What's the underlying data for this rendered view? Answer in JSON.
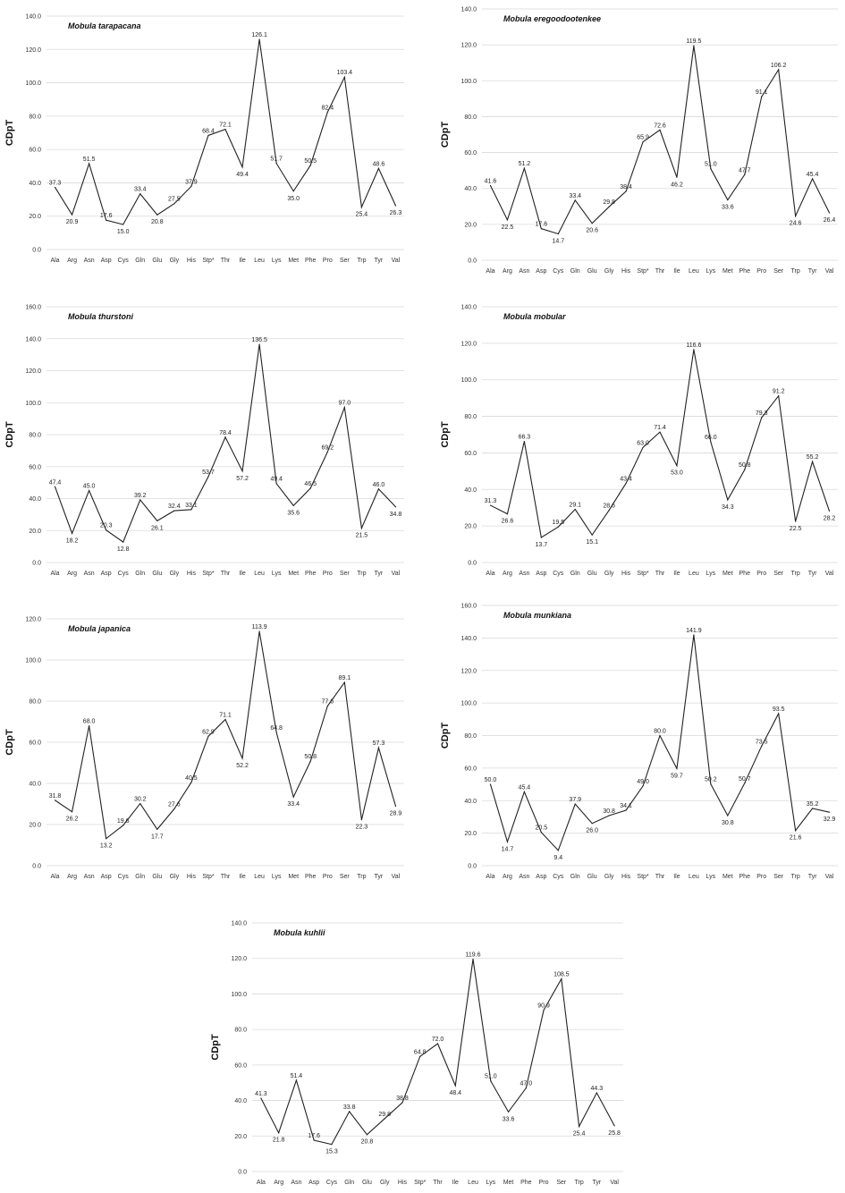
{
  "chart_data": [
    {
      "type": "line",
      "title": "Mobula tarapacana",
      "ylabel": "CDpT",
      "ylim": [
        0,
        140
      ],
      "yticks": [
        "0.0",
        "20.0",
        "40.0",
        "60.0",
        "80.0",
        "100.0",
        "120.0",
        "140.0"
      ],
      "categories": [
        "Ala",
        "Arg",
        "Asn",
        "Asp",
        "Cys",
        "Gln",
        "Glu",
        "Gly",
        "His",
        "Stp*",
        "Thr",
        "Ile",
        "Leu",
        "Lys",
        "Met",
        "Phe",
        "Pro",
        "Ser",
        "Trp",
        "Tyr",
        "Val"
      ],
      "values": [
        37.3,
        20.9,
        51.5,
        17.6,
        15.0,
        33.4,
        20.8,
        27.5,
        37.9,
        68.4,
        72.1,
        49.4,
        126.1,
        51.7,
        35.0,
        50.5,
        82.4,
        103.4,
        25.4,
        48.6,
        26.3
      ],
      "labels": [
        "37.3",
        "20.9",
        "51.5",
        "17.6",
        "15.0",
        "33.4",
        "20.8",
        "27.5",
        "37.9",
        "68.4",
        "72.1",
        "49.4",
        "126.1",
        "51.7",
        "35.0",
        "50.5",
        "82.4",
        "103.4",
        "25.4",
        "48.6",
        "26.3"
      ],
      "grid": true
    },
    {
      "type": "line",
      "title": "Mobula eregoodootenkee",
      "ylabel": "CDpT",
      "ylim": [
        0,
        140
      ],
      "yticks": [
        "0.0",
        "20.0",
        "40.0",
        "60.0",
        "80.0",
        "100.0",
        "120.0",
        "140.0"
      ],
      "categories": [
        "Ala",
        "Arg",
        "Asn",
        "Asp",
        "Cys",
        "Gln",
        "Glu",
        "Gly",
        "His",
        "Stp*",
        "Thr",
        "Ile",
        "Leu",
        "Lys",
        "Met",
        "Phe",
        "Pro",
        "Ser",
        "Trp",
        "Tyr",
        "Val"
      ],
      "values": [
        41.6,
        22.5,
        51.2,
        17.6,
        14.7,
        33.4,
        20.6,
        29.8,
        38.4,
        65.9,
        72.6,
        46.2,
        119.5,
        51.0,
        33.6,
        47.7,
        91.1,
        106.2,
        24.6,
        45.4,
        26.4
      ],
      "labels": [
        "41.6",
        "22.5",
        "51.2",
        "17.6",
        "14.7",
        "33.4",
        "20.6",
        "29.8",
        "38.4",
        "65.9",
        "72.6",
        "46.2",
        "119.5",
        "51.0",
        "33.6",
        "47.7",
        "91.1",
        "106.2",
        "24.6",
        "45.4",
        "26.4"
      ],
      "grid": true
    },
    {
      "type": "line",
      "title": "Mobula thurstoni",
      "ylabel": "CDpT",
      "ylim": [
        0,
        160
      ],
      "yticks": [
        "0.0",
        "20.0",
        "40.0",
        "60.0",
        "80.0",
        "100.0",
        "120.0",
        "140.0",
        "160.0"
      ],
      "categories": [
        "Ala",
        "Arg",
        "Asn",
        "Asp",
        "Cys",
        "Gln",
        "Glu",
        "Gly",
        "His",
        "Stp*",
        "Thr",
        "Ile",
        "Leu",
        "Lys",
        "Met",
        "Phe",
        "Pro",
        "Ser",
        "Trp",
        "Tyr",
        "Val"
      ],
      "values": [
        47.4,
        18.2,
        45.0,
        20.3,
        12.8,
        39.2,
        26.1,
        32.4,
        33.1,
        53.7,
        78.4,
        57.2,
        136.5,
        49.4,
        35.6,
        46.5,
        69.2,
        97.0,
        21.5,
        46.0,
        34.8
      ],
      "labels": [
        "47.4",
        "18.2",
        "45.0",
        "20.3",
        "12.8",
        "39.2",
        "26.1",
        "32.4",
        "33.1",
        "53.7",
        "78.4",
        "57.2",
        "136.5",
        "49.4",
        "35.6",
        "46.5",
        "69.2",
        "97.0",
        "21.5",
        "46.0",
        "34.8"
      ],
      "grid": true
    },
    {
      "type": "line",
      "title": "Mobula mobular",
      "ylabel": "CDpT",
      "ylim": [
        0,
        140
      ],
      "yticks": [
        "0.0",
        "20.0",
        "40.0",
        "60.0",
        "80.0",
        "100.0",
        "120.0",
        "140.0"
      ],
      "categories": [
        "Ala",
        "Arg",
        "Asn",
        "Asp",
        "Cys",
        "Gln",
        "Glu",
        "Gly",
        "His",
        "Stp*",
        "Thr",
        "Ile",
        "Leu",
        "Lys",
        "Met",
        "Phe",
        "Pro",
        "Ser",
        "Trp",
        "Tyr",
        "Val"
      ],
      "values": [
        31.3,
        26.6,
        66.3,
        13.7,
        19.5,
        29.1,
        15.1,
        28.6,
        43.4,
        63.0,
        71.4,
        53.0,
        116.6,
        66.0,
        34.3,
        50.8,
        79.3,
        91.2,
        22.5,
        55.2,
        28.2
      ],
      "labels": [
        "31.3",
        "26.6",
        "66.3",
        "13.7",
        "19.5",
        "29.1",
        "15.1",
        "28.6",
        "43.4",
        "63.0",
        "71.4",
        "53.0",
        "116.6",
        "66.0",
        "34.3",
        "50.8",
        "79.3",
        "91.2",
        "22.5",
        "55.2",
        "28.2"
      ],
      "grid": true
    },
    {
      "type": "line",
      "title": "Mobula japanica",
      "ylabel": "CDpT",
      "ylim": [
        0,
        120
      ],
      "yticks": [
        "0.0",
        "20.0",
        "40.0",
        "60.0",
        "80.0",
        "100.0",
        "120.0"
      ],
      "categories": [
        "Ala",
        "Arg",
        "Asn",
        "Asp",
        "Cys",
        "Gln",
        "Glu",
        "Gly",
        "His",
        "Stp*",
        "Thr",
        "Ile",
        "Leu",
        "Lys",
        "Met",
        "Phe",
        "Pro",
        "Ser",
        "Trp",
        "Tyr",
        "Val"
      ],
      "values": [
        31.8,
        26.2,
        68.0,
        13.2,
        19.6,
        30.2,
        17.7,
        27.6,
        40.5,
        62.9,
        71.1,
        52.2,
        113.9,
        64.8,
        33.4,
        50.8,
        77.6,
        89.1,
        22.3,
        57.3,
        28.9
      ],
      "labels": [
        "31.8",
        "26.2",
        "68.0",
        "13.2",
        "19.6",
        "30.2",
        "17.7",
        "27.6",
        "40.5",
        "62.9",
        "71.1",
        "52.2",
        "113.9",
        "64.8",
        "33.4",
        "50.8",
        "77.6",
        "89.1",
        "22.3",
        "57.3",
        "28.9"
      ],
      "grid": true
    },
    {
      "type": "line",
      "title": "Mobula munkiana",
      "ylabel": "CDpT",
      "ylim": [
        0,
        160
      ],
      "yticks": [
        "0.0",
        "20.0",
        "40.0",
        "60.0",
        "80.0",
        "100.0",
        "120.0",
        "140.0",
        "160.0"
      ],
      "categories": [
        "Ala",
        "Arg",
        "Asn",
        "Asp",
        "Cys",
        "Gln",
        "Glu",
        "Gly",
        "His",
        "Stp*",
        "Thr",
        "Ile",
        "Leu",
        "Lys",
        "Met",
        "Phe",
        "Pro",
        "Ser",
        "Trp",
        "Tyr",
        "Val"
      ],
      "values": [
        50.0,
        14.7,
        45.4,
        20.5,
        9.4,
        37.9,
        26.0,
        30.8,
        34.1,
        49.0,
        80.0,
        59.7,
        141.9,
        50.2,
        30.8,
        50.7,
        73.5,
        93.5,
        21.6,
        35.2,
        32.9
      ],
      "labels": [
        "50.0",
        "14.7",
        "45.4",
        "20.5",
        "9.4",
        "37.9",
        "26.0",
        "30.8",
        "34.1",
        "49.0",
        "80.0",
        "59.7",
        "141.9",
        "50.2",
        "30.8",
        "50.7",
        "73.5",
        "93.5",
        "21.6",
        "35.2",
        "32.9"
      ],
      "grid": true
    },
    {
      "type": "line",
      "title": "Mobula kuhlii",
      "ylabel": "CDpT",
      "ylim": [
        0,
        140
      ],
      "yticks": [
        "0.0",
        "20.0",
        "40.0",
        "60.0",
        "80.0",
        "100.0",
        "120.0",
        "140.0"
      ],
      "categories": [
        "Ala",
        "Arg",
        "Asn",
        "Asp",
        "Cys",
        "Gln",
        "Glu",
        "Gly",
        "His",
        "Stp*",
        "Thr",
        "Ile",
        "Leu",
        "Lys",
        "Met",
        "Phe",
        "Pro",
        "Ser",
        "Trp",
        "Tyr",
        "Val"
      ],
      "values": [
        41.3,
        21.8,
        51.4,
        17.6,
        15.3,
        33.8,
        20.8,
        29.8,
        38.8,
        64.8,
        72.0,
        48.4,
        119.6,
        51.0,
        33.6,
        47.0,
        90.9,
        108.5,
        25.4,
        44.3,
        25.8
      ],
      "labels": [
        "41.3",
        "21.8",
        "51.4",
        "17.6",
        "15.3",
        "33.8",
        "20.8",
        "29.8",
        "38.8",
        "64.8",
        "72.0",
        "48.4",
        "119.6",
        "51.0",
        "33.6",
        "47.0",
        "90.9",
        "108.5",
        "25.4",
        "44.3",
        "25.8"
      ],
      "grid": true
    }
  ]
}
